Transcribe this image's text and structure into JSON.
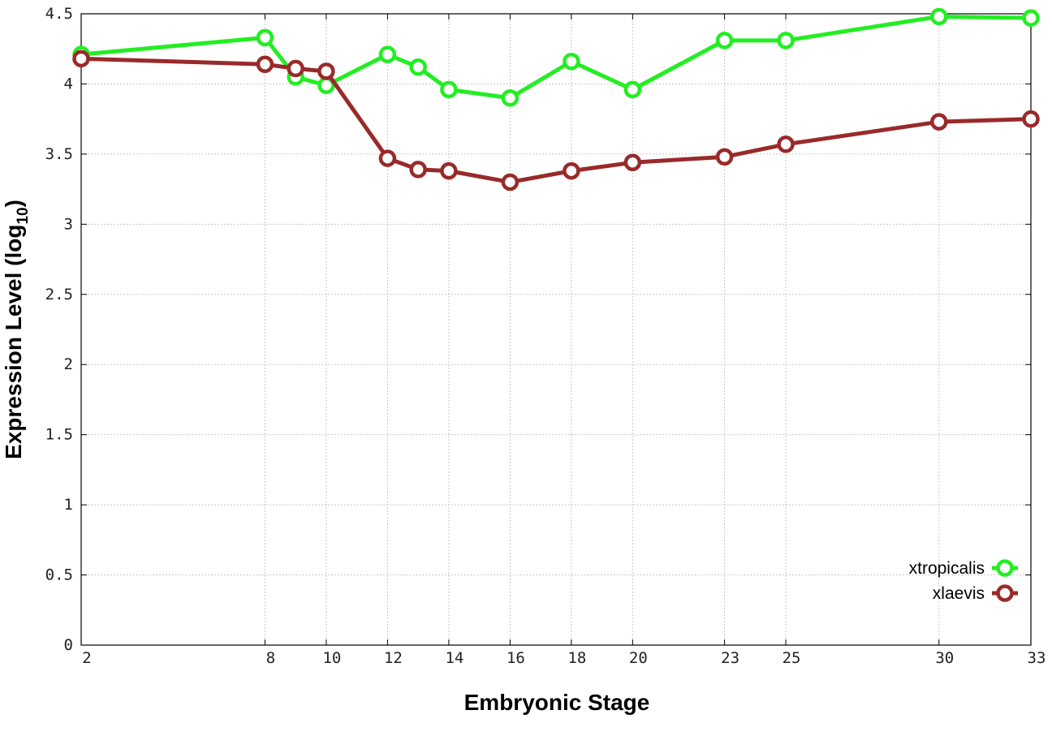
{
  "chart_data": {
    "type": "line",
    "xlabel": "Embryonic Stage",
    "ylabel": "Expression Level (log",
    "ylabel_sub": "10",
    "ylabel_close": ")",
    "xlim": [
      2,
      33
    ],
    "ylim": [
      0,
      4.5
    ],
    "grid": true,
    "legend_position": "bottom-right",
    "x_ticks": [
      2,
      8,
      10,
      12,
      14,
      16,
      18,
      20,
      23,
      25,
      30,
      33
    ],
    "y_ticks": [
      {
        "value": 0,
        "label": "0"
      },
      {
        "value": 0.5,
        "label": "0.5"
      },
      {
        "value": 1,
        "label": "1"
      },
      {
        "value": 1.5,
        "label": "1.5"
      },
      {
        "value": 2,
        "label": "2"
      },
      {
        "value": 2.5,
        "label": "2.5"
      },
      {
        "value": 3,
        "label": "3"
      },
      {
        "value": 3.5,
        "label": "3.5"
      },
      {
        "value": 4,
        "label": "4"
      },
      {
        "value": 4.5,
        "label": "4.5"
      }
    ],
    "x": [
      2,
      8,
      9,
      10,
      12,
      13,
      14,
      16,
      18,
      20,
      23,
      25,
      30,
      33
    ],
    "series": [
      {
        "name": "xtropicalis",
        "color": "#22ee22",
        "values": [
          4.21,
          4.33,
          4.05,
          3.99,
          4.21,
          4.12,
          3.96,
          3.9,
          4.16,
          3.96,
          4.31,
          4.31,
          4.48,
          4.47
        ]
      },
      {
        "name": "xlaevis",
        "color": "#992a2a",
        "values": [
          4.18,
          4.14,
          4.11,
          4.09,
          3.47,
          3.39,
          3.38,
          3.3,
          3.38,
          3.44,
          3.48,
          3.57,
          3.73,
          3.75
        ]
      }
    ]
  }
}
